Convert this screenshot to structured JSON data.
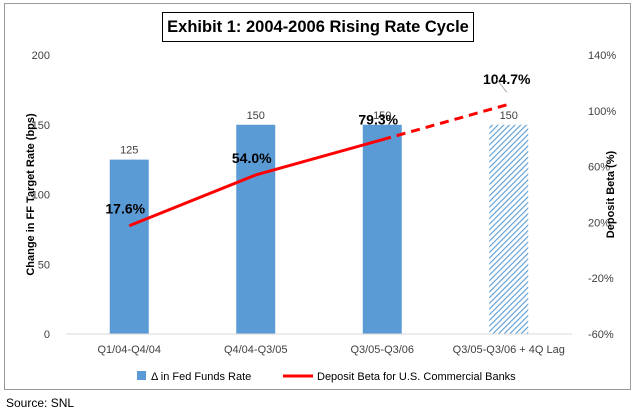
{
  "source_label": "Source: SNL",
  "chart_data": {
    "type": "bar",
    "title": "Exhibit 1:  2004-2006 Rising Rate Cycle",
    "categories": [
      "Q1/04-Q4/04",
      "Q4/04-Q3/05",
      "Q3/05-Q3/06",
      "Q3/05-Q3/06 + 4Q Lag"
    ],
    "ylabel": "Change in FF Target Rate (bps)",
    "y2label": "Deposit Beta (%)",
    "ylim": [
      0,
      200
    ],
    "yticks": [
      0,
      50,
      100,
      150,
      200
    ],
    "y2lim": [
      -60,
      140
    ],
    "y2ticks": [
      "-60%",
      "-20%",
      "20%",
      "60%",
      "100%",
      "140%"
    ],
    "y2tick_values": [
      -60,
      -20,
      20,
      60,
      100,
      140
    ],
    "grid": false,
    "legend_position": "bottom",
    "series": [
      {
        "name": "Δ in Fed Funds Rate",
        "type": "bar",
        "axis": "left",
        "color": "#5b9bd5",
        "values": [
          125,
          150,
          150,
          150
        ],
        "value_labels": [
          "125",
          "150",
          "150",
          "150"
        ],
        "hatched": [
          false,
          false,
          false,
          true
        ]
      },
      {
        "name": "Deposit Beta for U.S. Commercial Banks",
        "type": "line",
        "axis": "right",
        "color": "#ff0000",
        "values": [
          17.6,
          54.0,
          79.3,
          104.7
        ],
        "value_labels": [
          "17.6%",
          "54.0%",
          "79.3%",
          "104.7%"
        ],
        "dashed_last_segment": true
      }
    ]
  }
}
